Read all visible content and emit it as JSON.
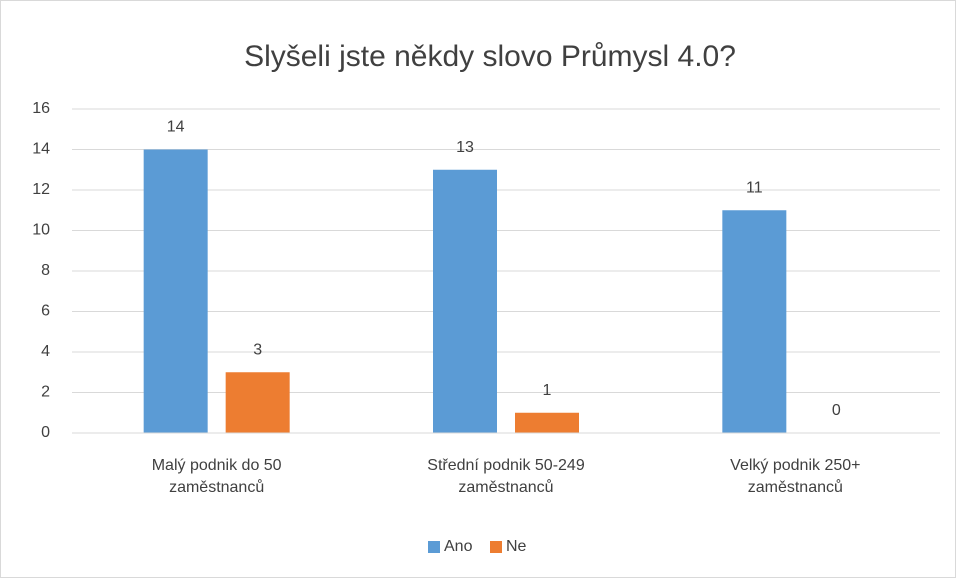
{
  "chart_data": {
    "type": "bar",
    "title": "Slyšeli jste někdy slovo Průmysl 4.0?",
    "categories": [
      "Malý podnik do 50 zaměstnanců",
      "Střední podnik 50-249 zaměstnanců",
      "Velký podnik 250+ zaměstnanců"
    ],
    "series": [
      {
        "name": "Ano",
        "color": "#5b9bd5",
        "values": [
          14,
          13,
          11
        ]
      },
      {
        "name": "Ne",
        "color": "#ed7d31",
        "values": [
          3,
          1,
          0
        ]
      }
    ],
    "ylim": [
      0,
      16
    ],
    "yticks": [
      0,
      2,
      4,
      6,
      8,
      10,
      12,
      14,
      16
    ],
    "grid": true,
    "legend": "bottom"
  }
}
